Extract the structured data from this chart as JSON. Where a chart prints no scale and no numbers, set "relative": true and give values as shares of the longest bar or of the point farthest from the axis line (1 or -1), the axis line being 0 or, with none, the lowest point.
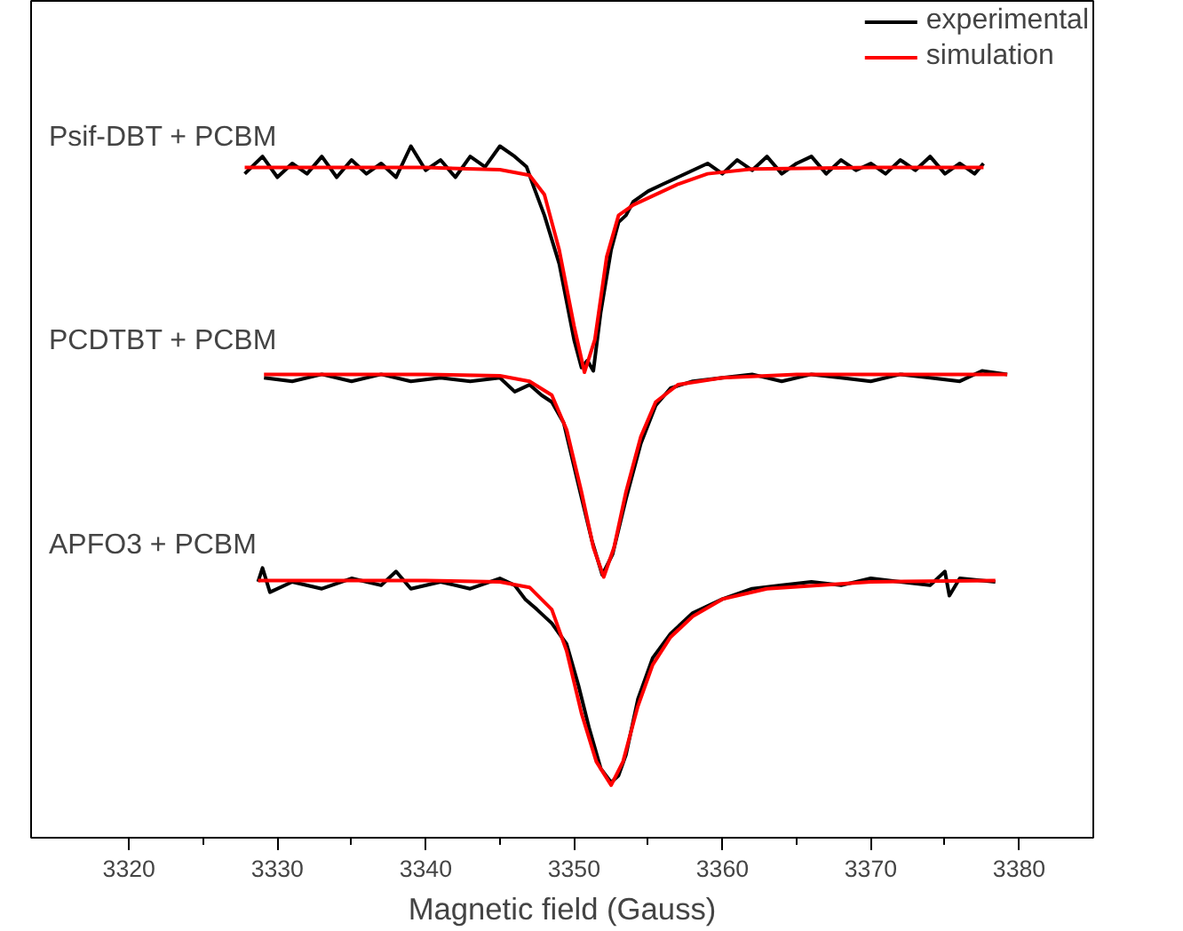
{
  "chart_data": {
    "type": "line",
    "relative": true,
    "xlabel": "Magnetic field (Gauss)",
    "xlim": [
      3313.4,
      3385
    ],
    "xticks": [
      3320,
      {
        "value": 3325,
        "label": null
      },
      3330,
      {
        "value": 3335,
        "label": null
      },
      3340,
      {
        "value": 3345,
        "label": null
      },
      3350,
      {
        "value": 3355,
        "label": null
      },
      3360,
      {
        "value": 3365,
        "label": null
      },
      3370,
      {
        "value": 3375,
        "label": null
      },
      3380
    ],
    "tick_labels": "x",
    "grid": false,
    "legend": "top right",
    "line_style": "solid",
    "marker": "none",
    "annotations": [
      "Psif-DBT + PCBM",
      "PCDTBT + PCBM",
      "APFO3 + PCBM"
    ],
    "series": [
      {
        "name": "experimental",
        "color": "#000000",
        "x": [
          3327.8,
          3329,
          3330,
          3331,
          3332,
          3333,
          3334,
          3335,
          3336,
          3337,
          3338,
          3339,
          3340,
          3341,
          3342,
          3343,
          3344,
          3345,
          3346,
          3346.8,
          3347.3,
          3348,
          3349,
          3350,
          3350.5,
          3350.9,
          3351.3,
          3351.8,
          3352.5,
          3353,
          3353.5,
          3354,
          3355,
          3356,
          3357,
          3358,
          3359,
          3360,
          3361,
          3362,
          3363,
          3364,
          3365,
          3366,
          3367,
          3368,
          3369,
          3370,
          3371,
          3372,
          3373,
          3374,
          3375,
          3376,
          3377,
          3377.6
        ],
        "values": [
          0.96,
          0.985,
          0.955,
          0.975,
          0.96,
          0.985,
          0.955,
          0.98,
          0.96,
          0.975,
          0.955,
          1.0,
          0.965,
          0.98,
          0.955,
          0.985,
          0.97,
          1.0,
          0.985,
          0.97,
          0.94,
          0.9,
          0.83,
          0.72,
          0.68,
          0.69,
          0.675,
          0.76,
          0.85,
          0.89,
          0.9,
          0.92,
          0.935,
          0.945,
          0.955,
          0.965,
          0.975,
          0.96,
          0.98,
          0.965,
          0.985,
          0.96,
          0.975,
          0.985,
          0.96,
          0.98,
          0.965,
          0.975,
          0.96,
          0.98,
          0.965,
          0.985,
          0.96,
          0.975,
          0.96,
          0.975
        ]
      },
      {
        "name": "simulation",
        "color": "#ff0000",
        "x": [
          3327.8,
          3340,
          3345,
          3347,
          3348,
          3349,
          3350,
          3350.7,
          3351.4,
          3352.2,
          3353,
          3354,
          3355,
          3357,
          3359,
          3362,
          3370,
          3377.6
        ],
        "values": [
          0.969,
          0.969,
          0.966,
          0.958,
          0.93,
          0.85,
          0.74,
          0.673,
          0.72,
          0.84,
          0.9,
          0.915,
          0.925,
          0.945,
          0.96,
          0.967,
          0.969,
          0.969
        ]
      },
      {
        "color": "#000000",
        "x": [
          3329.1,
          3331,
          3333,
          3335,
          3337,
          3339,
          3341,
          3343,
          3345,
          3346,
          3347,
          3347.8,
          3348.5,
          3349.3,
          3350.3,
          3351.2,
          3351.9,
          3352.6,
          3353.5,
          3354.5,
          3355.5,
          3356.5,
          3358,
          3360,
          3362,
          3364,
          3366,
          3368,
          3370,
          3372,
          3374,
          3376,
          3377.5,
          3379.2
        ],
        "values": [
          0.665,
          0.66,
          0.67,
          0.66,
          0.67,
          0.66,
          0.665,
          0.66,
          0.665,
          0.645,
          0.655,
          0.64,
          0.63,
          0.6,
          0.51,
          0.43,
          0.38,
          0.41,
          0.49,
          0.57,
          0.625,
          0.65,
          0.66,
          0.665,
          0.67,
          0.66,
          0.67,
          0.665,
          0.66,
          0.67,
          0.665,
          0.66,
          0.675,
          0.67
        ]
      },
      {
        "color": "#ff0000",
        "x": [
          3329.1,
          3340,
          3345,
          3347,
          3348.5,
          3349.5,
          3350.5,
          3351.3,
          3352,
          3352.7,
          3353.5,
          3354.5,
          3355.5,
          3357,
          3360,
          3365,
          3379.2
        ],
        "values": [
          0.67,
          0.67,
          0.668,
          0.66,
          0.64,
          0.59,
          0.5,
          0.42,
          0.377,
          0.42,
          0.5,
          0.58,
          0.63,
          0.655,
          0.665,
          0.67,
          0.67
        ]
      },
      {
        "color": "#000000",
        "x": [
          3328.7,
          3329,
          3329.5,
          3331,
          3333,
          3335,
          3337,
          3338,
          3339,
          3341,
          3343,
          3345,
          3346,
          3346.7,
          3347.5,
          3348.5,
          3349.5,
          3350.3,
          3351,
          3351.8,
          3352.5,
          3353,
          3353.5,
          3354.3,
          3355.3,
          3356.5,
          3358,
          3360,
          3362,
          3364,
          3366,
          3368,
          3370,
          3372,
          3374,
          3375,
          3375.3,
          3376,
          3378.4
        ],
        "values": [
          0.37,
          0.39,
          0.355,
          0.37,
          0.36,
          0.375,
          0.365,
          0.385,
          0.36,
          0.37,
          0.36,
          0.375,
          0.365,
          0.345,
          0.33,
          0.31,
          0.28,
          0.22,
          0.16,
          0.1,
          0.08,
          0.09,
          0.12,
          0.2,
          0.26,
          0.295,
          0.325,
          0.345,
          0.36,
          0.365,
          0.37,
          0.365,
          0.375,
          0.37,
          0.365,
          0.385,
          0.35,
          0.375,
          0.37
        ]
      },
      {
        "color": "#ff0000",
        "x": [
          3328.7,
          3340,
          3345,
          3347,
          3348.5,
          3349.5,
          3350.5,
          3351.5,
          3352.5,
          3353.3,
          3354.3,
          3355.3,
          3356.5,
          3358,
          3360,
          3363,
          3370,
          3378.4
        ],
        "values": [
          0.372,
          0.372,
          0.37,
          0.362,
          0.33,
          0.27,
          0.18,
          0.11,
          0.076,
          0.11,
          0.19,
          0.25,
          0.29,
          0.32,
          0.345,
          0.36,
          0.37,
          0.372
        ]
      }
    ]
  }
}
